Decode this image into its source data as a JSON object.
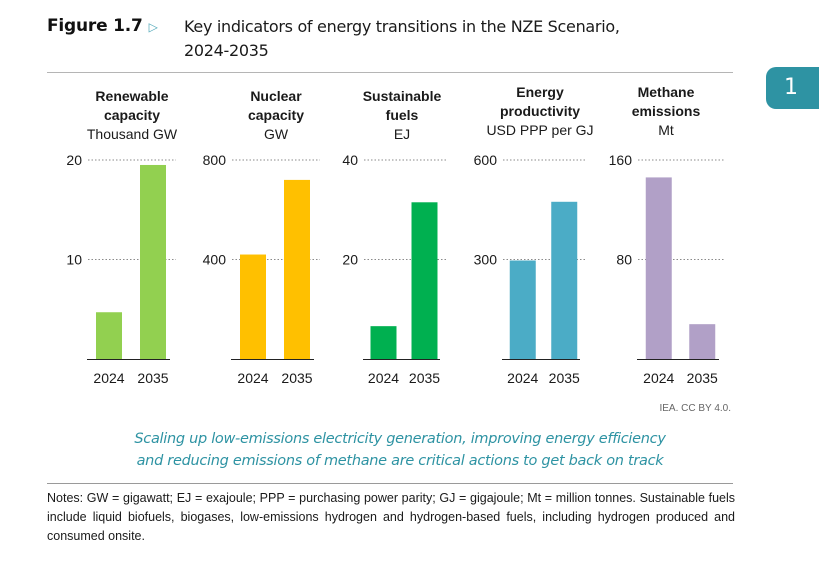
{
  "figure": {
    "label": "Figure 1.7",
    "arrow_icon": "triangle-right-outline-icon",
    "title_line1": "Key indicators of energy transitions in the NZE Scenario,",
    "title_line2": "2024-2035"
  },
  "chapter_tab": {
    "number": "1",
    "color": "#2e93a3"
  },
  "source": "IEA. CC BY 4.0.",
  "caption_line1": "Scaling up low-emissions electricity generation, improving energy efficiency",
  "caption_line2": "and reducing emissions of methane are critical actions to get back on track",
  "notes_line1": "Notes: GW = gigawatt; EJ = exajoule; PPP = purchasing power parity; GJ = gigajoule; Mt = million tonnes.",
  "notes_line2": "Sustainable fuels include liquid biofuels, biogases, low-emissions hydrogen and hydrogen-based fuels, including hydrogen produced and consumed onsite.",
  "chart_data": [
    {
      "type": "bar",
      "title_lines": [
        "Renewable",
        "capacity"
      ],
      "ylabel": "Thousand GW",
      "categories": [
        "2024",
        "2035"
      ],
      "values": [
        4.7,
        19.5
      ],
      "ylim": [
        0,
        20
      ],
      "yticks": [
        10,
        20
      ],
      "color": "#92d050",
      "grid": "dotted"
    },
    {
      "type": "bar",
      "title_lines": [
        "Nuclear",
        "capacity"
      ],
      "ylabel": "GW",
      "categories": [
        "2024",
        "2035"
      ],
      "values": [
        420,
        720
      ],
      "ylim": [
        0,
        800
      ],
      "yticks": [
        400,
        800
      ],
      "color": "#ffc000",
      "grid": "dotted"
    },
    {
      "type": "bar",
      "title_lines": [
        "Sustainable",
        "fuels"
      ],
      "ylabel": "EJ",
      "categories": [
        "2024",
        "2035"
      ],
      "values": [
        6.6,
        31.5
      ],
      "ylim": [
        0,
        40
      ],
      "yticks": [
        20,
        40
      ],
      "color": "#00b050",
      "grid": "dotted"
    },
    {
      "type": "bar",
      "title_lines": [
        "Energy",
        "productivity"
      ],
      "ylabel": "USD PPP per GJ",
      "categories": [
        "2024",
        "2035"
      ],
      "values": [
        297,
        474
      ],
      "ylim": [
        0,
        600
      ],
      "yticks": [
        300,
        600
      ],
      "color": "#4bacc6",
      "grid": "dotted"
    },
    {
      "type": "bar",
      "title_lines": [
        "Methane",
        "emissions"
      ],
      "ylabel": "Mt",
      "categories": [
        "2024",
        "2035"
      ],
      "values": [
        146,
        28
      ],
      "ylim": [
        0,
        160
      ],
      "yticks": [
        80,
        160
      ],
      "color": "#b1a0c7",
      "grid": "dotted"
    }
  ]
}
